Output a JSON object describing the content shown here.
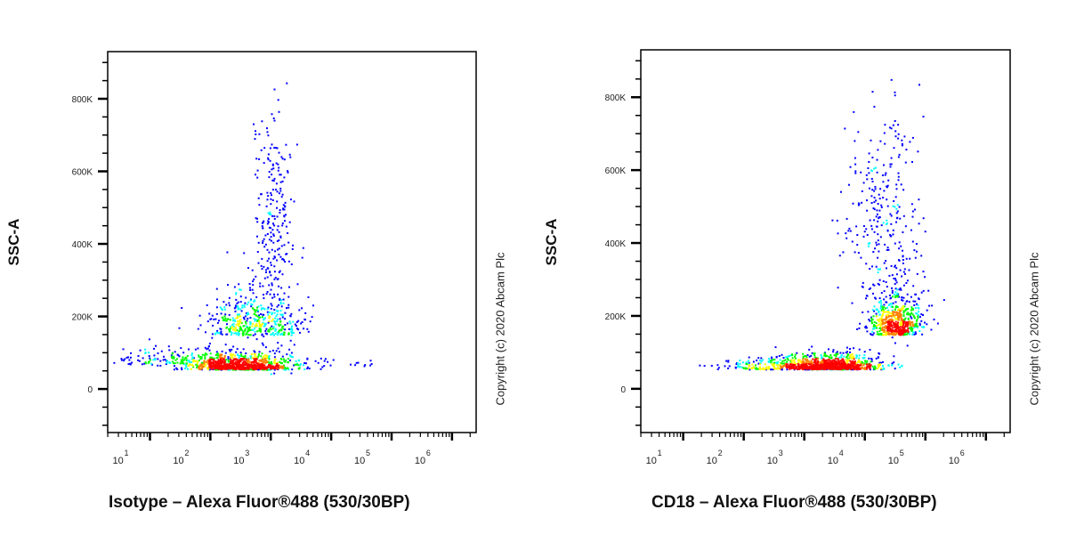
{
  "chart_data": [
    {
      "type": "scatter",
      "subtype": "flow-cytometry-density-dot-plot",
      "title": "",
      "xlabel": "Isotype – Alexa Fluor®488 (530/30BP)",
      "ylabel": "SSC-A",
      "xscale": "log",
      "x_tick_labels": [
        "10^1",
        "10^2",
        "10^3",
        "10^4",
        "10^5",
        "10^6"
      ],
      "y_tick_labels": [
        "0",
        "200K",
        "400K",
        "600K",
        "800K"
      ],
      "ylim": [
        -120000,
        930000
      ],
      "xlim_log10": [
        0.3,
        6.4
      ],
      "grid": false,
      "density_colors": [
        "#0000ff",
        "#00ffff",
        "#00ff00",
        "#ffff00",
        "#ff8000",
        "#ff0000"
      ],
      "populations": [
        {
          "name": "main-cluster",
          "x_log10_center": 2.5,
          "x_log10_spread": 0.45,
          "y_center": 55000,
          "y_spread": 25000,
          "n": 900,
          "peak_density": "high"
        },
        {
          "name": "spread-above",
          "x_log10_center": 2.7,
          "x_log10_spread": 0.4,
          "y_center": 150000,
          "y_spread": 70000,
          "n": 450
        },
        {
          "name": "vertical-tail",
          "x_log10_center": 3.05,
          "x_log10_spread": 0.18,
          "y_center": 450000,
          "y_spread": 170000,
          "n": 260
        },
        {
          "name": "low-left-scatter",
          "x_log10_center": 1.5,
          "x_log10_spread": 0.55,
          "y_center": 70000,
          "y_spread": 30000,
          "n": 160
        },
        {
          "name": "right-outliers",
          "x_log10_center": 4.3,
          "x_log10_spread": 0.4,
          "y_center": 65000,
          "y_spread": 15000,
          "n": 12
        }
      ]
    },
    {
      "type": "scatter",
      "subtype": "flow-cytometry-density-dot-plot",
      "title": "",
      "xlabel": "CD18 – Alexa Fluor®488 (530/30BP)",
      "ylabel": "SSC-A",
      "xscale": "log",
      "x_tick_labels": [
        "10^1",
        "10^2",
        "10^3",
        "10^4",
        "10^5",
        "10^6"
      ],
      "y_tick_labels": [
        "0",
        "200K",
        "400K",
        "600K",
        "800K"
      ],
      "ylim": [
        -120000,
        930000
      ],
      "xlim_log10": [
        0.3,
        6.4
      ],
      "grid": false,
      "density_colors": [
        "#0000ff",
        "#00ffff",
        "#00ff00",
        "#ffff00",
        "#ff8000",
        "#ff0000"
      ],
      "populations": [
        {
          "name": "main-cluster",
          "x_log10_center": 3.45,
          "x_log10_spread": 0.4,
          "y_center": 55000,
          "y_spread": 22000,
          "n": 950,
          "peak_density": "high"
        },
        {
          "name": "rising-arm",
          "x_log10_center": 4.5,
          "x_log10_spread": 0.22,
          "y_center": 150000,
          "y_spread": 70000,
          "n": 650
        },
        {
          "name": "upper-tail",
          "x_log10_center": 4.3,
          "x_log10_spread": 0.3,
          "y_center": 480000,
          "y_spread": 150000,
          "n": 280
        },
        {
          "name": "low-left-scatter",
          "x_log10_center": 2.4,
          "x_log10_spread": 0.45,
          "y_center": 55000,
          "y_spread": 20000,
          "n": 180
        }
      ]
    }
  ],
  "panels": [
    {
      "ylabel": "SSC-A",
      "xlabel": "Isotype – Alexa Fluor®488 (530/30BP)",
      "copyright": "Copyright (c) 2020 Abcam Plc"
    },
    {
      "ylabel": "SSC-A",
      "xlabel": "CD18 – Alexa Fluor®488 (530/30BP)",
      "copyright": "Copyright (c) 2020 Abcam Plc"
    }
  ],
  "axes": {
    "y_ticks": [
      "0",
      "200K",
      "400K",
      "600K",
      "800K"
    ],
    "x_tick_base": "10",
    "x_tick_exponents": [
      "1",
      "2",
      "3",
      "4",
      "5",
      "6"
    ]
  }
}
